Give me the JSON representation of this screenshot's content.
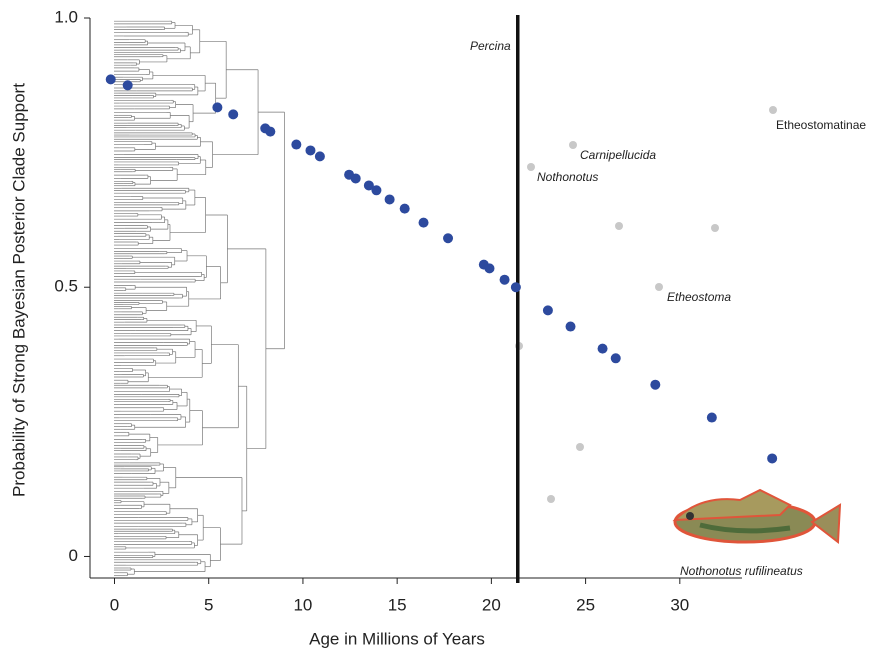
{
  "chart_data": {
    "type": "scatter",
    "xlabel": "Age in Millions of Years",
    "ylabel": "Probability of Strong Bayesian Posterior Clade Support",
    "xlim": [
      -1.3,
      33.3
    ],
    "ylim": [
      -0.04,
      1.0
    ],
    "xticks": [
      0,
      5,
      10,
      15,
      20,
      25,
      30
    ],
    "yticks": [
      0,
      0.5,
      {
        "value": 1,
        "label": "1.0"
      }
    ],
    "vline": 21.4,
    "annotations": [
      "Percina",
      "Etheostomatinae",
      "Carnipellucida",
      "Nothonotus",
      "Etheostoma",
      "Nothonotus rufilineatus"
    ],
    "series": [
      {
        "color": "#2d4a9e",
        "x": [
          -0.2,
          0.7,
          5.46,
          6.3,
          8.0,
          8.27,
          9.65,
          10.4,
          10.9,
          12.45,
          12.8,
          13.5,
          13.9,
          14.6,
          15.4,
          16.4,
          17.7,
          19.6,
          19.9,
          20.7,
          21.3,
          23.0,
          24.2,
          25.9,
          26.6,
          28.7,
          31.7,
          34.9
        ],
        "values": [
          0.886,
          0.875,
          0.834,
          0.821,
          0.795,
          0.789,
          0.765,
          0.754,
          0.743,
          0.709,
          0.702,
          0.689,
          0.68,
          0.663,
          0.646,
          0.62,
          0.591,
          0.542,
          0.535,
          0.514,
          0.5,
          0.457,
          0.427,
          0.386,
          0.368,
          0.319,
          0.258,
          0.182
        ]
      }
    ]
  }
}
